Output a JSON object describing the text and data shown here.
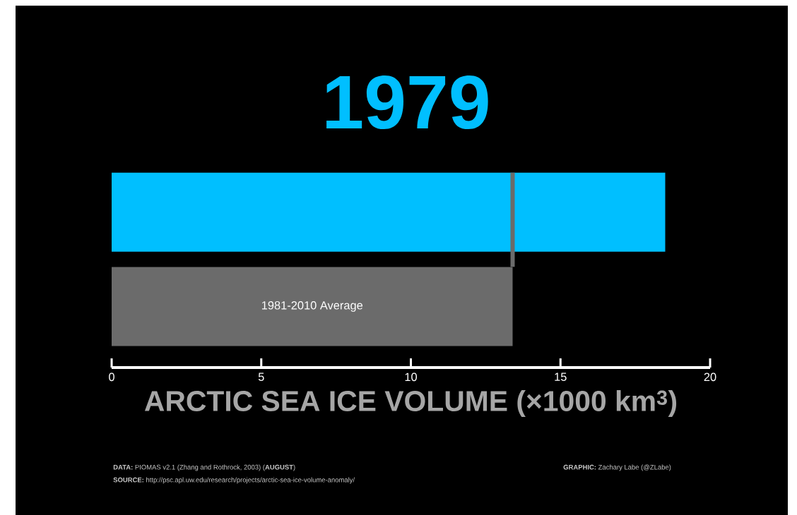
{
  "chart_data": {
    "type": "bar",
    "orientation": "horizontal",
    "title": "1979",
    "xlabel": "ARCTIC SEA ICE VOLUME (×1000 km$^{3}$)",
    "categories": [
      null,
      "1981-2010 Average"
    ],
    "values": [
      18.5,
      13.4
    ],
    "colors": [
      "#00bfff",
      "#6b6b6b"
    ],
    "xlim": [
      0,
      20
    ],
    "xticks": [
      0,
      5,
      10,
      15,
      20
    ],
    "ref_lines": [
      {
        "axis": "x",
        "value": 13.4,
        "color": "#6b6b6b"
      }
    ],
    "annotations": [
      "**DATA:** PIOMAS v2.1 (Zhang and Rothrock, 2003) (**AUGUST**)",
      "**SOURCE:** http://psc.apl.uw.edu/research/projects/arctic-sea-ice-volume-anomaly/",
      "**GRAPHIC:** Zachary Labe (@ZLabe)"
    ]
  }
}
